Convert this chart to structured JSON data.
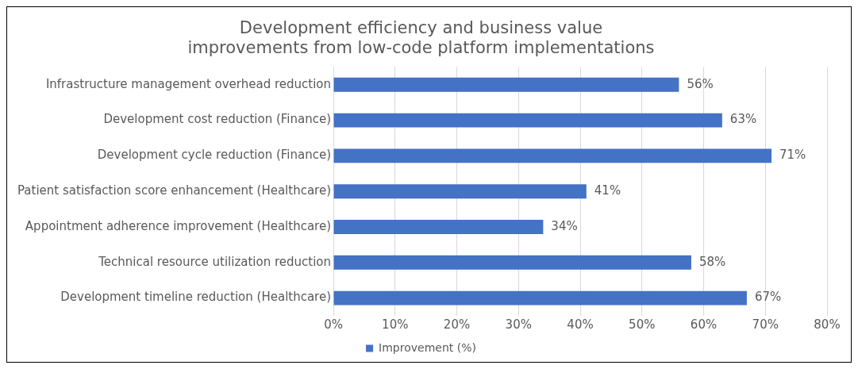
{
  "chart_data": {
    "type": "bar",
    "orientation": "horizontal",
    "title": "Development efficiency and business value\nimprovements from low-code platform implementations",
    "categories": [
      "Infrastructure management overhead reduction",
      "Development cost reduction (Finance)",
      "Development cycle reduction (Finance)",
      "Patient satisfaction score enhancement (Healthcare)",
      "Appointment adherence improvement (Healthcare)",
      "Technical resource utilization reduction",
      "Development timeline reduction (Healthcare)"
    ],
    "series": [
      {
        "name": "Improvement (%)",
        "color": "#4472c4",
        "values": [
          56,
          63,
          71,
          41,
          34,
          58,
          67
        ],
        "value_labels": [
          "56%",
          "63%",
          "71%",
          "41%",
          "34%",
          "58%",
          "67%"
        ]
      }
    ],
    "xlim": [
      0,
      80
    ],
    "xticks": [
      {
        "value": 0,
        "label": "0%"
      },
      {
        "value": 10,
        "label": "10%"
      },
      {
        "value": 20,
        "label": "20%"
      },
      {
        "value": 30,
        "label": "30%"
      },
      {
        "value": 40,
        "label": "40%"
      },
      {
        "value": 50,
        "label": "50%"
      },
      {
        "value": 60,
        "label": "60%"
      },
      {
        "value": 70,
        "label": "70%"
      },
      {
        "value": 80,
        "label": "80%"
      }
    ],
    "grid": "x",
    "legend": "bottom"
  }
}
